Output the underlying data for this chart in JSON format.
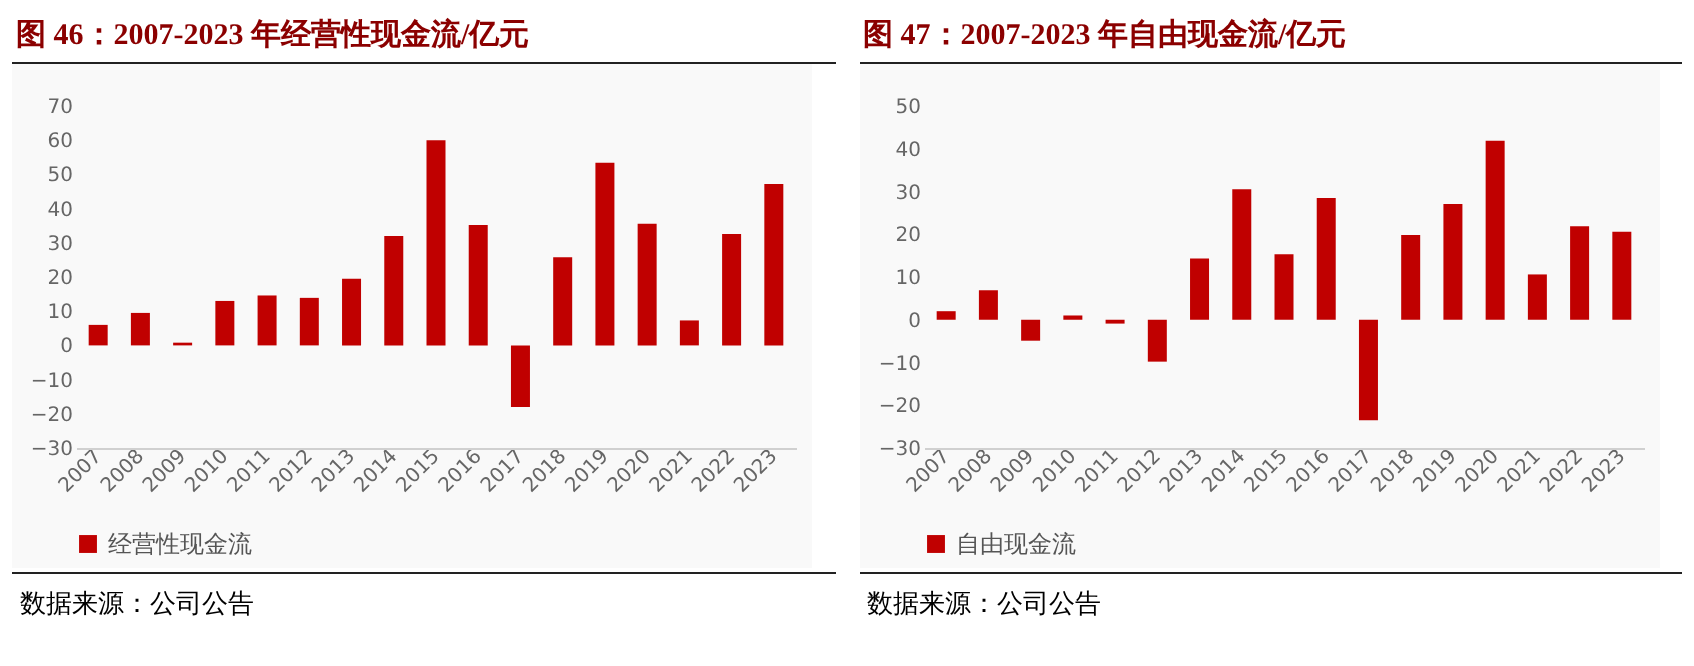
{
  "chart_data": [
    {
      "type": "bar",
      "title": "图 46：2007-2023 年经营性现金流/亿元",
      "categories": [
        "2007",
        "2008",
        "2009",
        "2010",
        "2011",
        "2012",
        "2013",
        "2014",
        "2015",
        "2016",
        "2017",
        "2018",
        "2019",
        "2020",
        "2021",
        "2022",
        "2023"
      ],
      "series": [
        {
          "name": "经营性现金流",
          "color": "#c00000",
          "values": [
            6,
            9.5,
            0.8,
            13,
            14.6,
            13.9,
            19.5,
            32,
            60,
            35.2,
            -18,
            25.8,
            53.4,
            35.6,
            7.3,
            32.6,
            47.2
          ]
        }
      ],
      "ylim": [
        -30,
        70
      ],
      "yticks": [
        -30,
        -20,
        -10,
        0,
        10,
        20,
        30,
        40,
        50,
        60,
        70
      ],
      "legend": "bottom",
      "annotations": [
        "数据来源：公司公告"
      ]
    },
    {
      "type": "bar",
      "title": "图 47：2007-2023 年自由现金流/亿元",
      "categories": [
        "2007",
        "2008",
        "2009",
        "2010",
        "2011",
        "2012",
        "2013",
        "2014",
        "2015",
        "2016",
        "2017",
        "2018",
        "2019",
        "2020",
        "2021",
        "2022",
        "2023"
      ],
      "series": [
        {
          "name": "自由现金流",
          "color": "#c00000",
          "values": [
            2,
            6.9,
            -4.9,
            1,
            -0.9,
            -9.8,
            14.3,
            30.5,
            15.3,
            28.5,
            -23.5,
            19.8,
            27.1,
            41.9,
            10.6,
            21.9,
            20.6
          ]
        }
      ],
      "ylim": [
        -30,
        50
      ],
      "yticks": [
        -30,
        -20,
        -10,
        0,
        10,
        20,
        30,
        40,
        50
      ],
      "legend": "bottom",
      "annotations": [
        "数据来源：公司公告"
      ]
    }
  ]
}
